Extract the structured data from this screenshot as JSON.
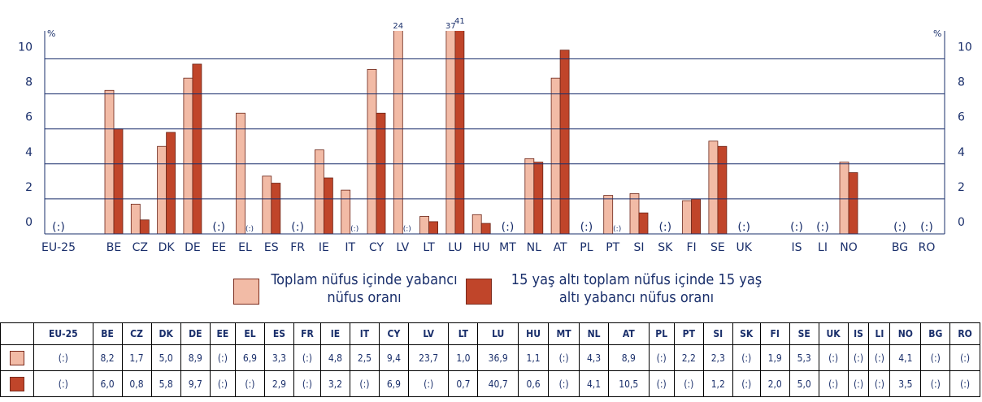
{
  "chart_data": {
    "type": "bar",
    "unit_label": "%",
    "categories": [
      "EU-25",
      "BE",
      "CZ",
      "DK",
      "DE",
      "EE",
      "EL",
      "ES",
      "FR",
      "IE",
      "IT",
      "CY",
      "LV",
      "LT",
      "LU",
      "HU",
      "MT",
      "NL",
      "AT",
      "PL",
      "PT",
      "SI",
      "SK",
      "FI",
      "SE",
      "UK",
      "IS",
      "LI",
      "NO",
      "BG",
      "RO"
    ],
    "series": [
      {
        "name": "Toplam nüfus içinde yabancı nüfus oranı",
        "color": "#f2bba6",
        "values": [
          null,
          8.2,
          1.7,
          5.0,
          8.9,
          null,
          6.9,
          3.3,
          null,
          4.8,
          2.5,
          9.4,
          23.7,
          1.0,
          36.9,
          1.1,
          null,
          4.3,
          8.9,
          null,
          2.2,
          2.3,
          null,
          1.9,
          5.3,
          null,
          null,
          null,
          4.1,
          null,
          null
        ],
        "value_labels": [
          "(:)",
          "8,2",
          "1,7",
          "5,0",
          "8,9",
          "(:)",
          "6,9",
          "3,3",
          "(:)",
          "4,8",
          "2,5",
          "9,4",
          "23,7",
          "1,0",
          "36,9",
          "1,1",
          "(:)",
          "4,3",
          "8,9",
          "(:)",
          "2,2",
          "2,3",
          "(:)",
          "1,9",
          "5,3",
          "(:)",
          "(:)",
          "(:)",
          "4,1",
          "(:)",
          "(:)"
        ],
        "top_labels": [
          null,
          null,
          null,
          null,
          null,
          null,
          null,
          null,
          null,
          null,
          null,
          null,
          "24",
          null,
          "37",
          null,
          null,
          null,
          null,
          null,
          null,
          null,
          null,
          null,
          null,
          null,
          null,
          null,
          null,
          null,
          null
        ]
      },
      {
        "name": "15 yaş altı toplam nüfus içinde 15 yaş altı yabancı nüfus oranı",
        "color": "#c0452a",
        "values": [
          null,
          6.0,
          0.8,
          5.8,
          9.7,
          null,
          null,
          2.9,
          null,
          3.2,
          null,
          6.9,
          null,
          0.7,
          40.7,
          0.6,
          null,
          4.1,
          10.5,
          null,
          null,
          1.2,
          null,
          2.0,
          5.0,
          null,
          null,
          null,
          3.5,
          null,
          null
        ],
        "value_labels": [
          "(:)",
          "6,0",
          "0,8",
          "5,8",
          "9,7",
          "(:)",
          "(:)",
          "2,9",
          "(:)",
          "3,2",
          "(:)",
          "6,9",
          "(:)",
          "0,7",
          "40,7",
          "0,6",
          "(:)",
          "4,1",
          "10,5",
          "(:)",
          "(:)",
          "1,2",
          "(:)",
          "2,0",
          "5,0",
          "(:)",
          "(:)",
          "(:)",
          "3,5",
          "(:)",
          "(:)"
        ],
        "top_labels": [
          null,
          null,
          null,
          null,
          null,
          null,
          null,
          null,
          null,
          null,
          null,
          null,
          null,
          null,
          "41",
          null,
          null,
          null,
          null,
          null,
          null,
          null,
          null,
          null,
          null,
          null,
          null,
          null,
          null,
          null,
          null
        ]
      }
    ],
    "ylim": [
      0,
      11.6
    ],
    "yticks": [
      0,
      2,
      4,
      6,
      8,
      10
    ],
    "grid": true
  }
}
